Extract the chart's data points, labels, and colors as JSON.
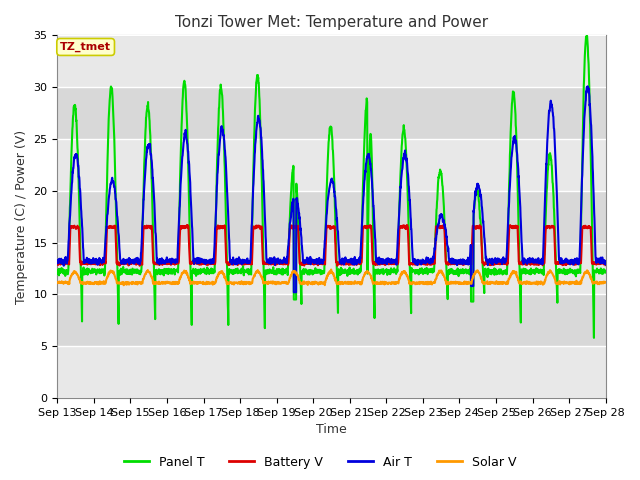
{
  "title": "Tonzi Tower Met: Temperature and Power",
  "xlabel": "Time",
  "ylabel": "Temperature (C) / Power (V)",
  "ylim": [
    0,
    35
  ],
  "yticks": [
    0,
    5,
    10,
    15,
    20,
    25,
    30,
    35
  ],
  "xtick_labels": [
    "Sep 13",
    "Sep 14",
    "Sep 15",
    "Sep 16",
    "Sep 17",
    "Sep 18",
    "Sep 19",
    "Sep 20",
    "Sep 21",
    "Sep 22",
    "Sep 23",
    "Sep 24",
    "Sep 25",
    "Sep 26",
    "Sep 27",
    "Sep 28"
  ],
  "legend_label": "TZ_tmet",
  "legend_bg": "#ffffcc",
  "legend_border": "#cccc00",
  "colors": {
    "panel_t": "#00dd00",
    "battery_v": "#dd0000",
    "air_t": "#0000dd",
    "solar_v": "#ff9900"
  },
  "fig_bg": "#ffffff",
  "plot_bg_light": "#e8e8e8",
  "plot_bg_dark": "#d0d0d0",
  "stripe_light": "#e8e8e8",
  "stripe_dark": "#d8d8d8",
  "title_fontsize": 11,
  "axis_fontsize": 9,
  "tick_fontsize": 8,
  "linewidth": 1.5
}
